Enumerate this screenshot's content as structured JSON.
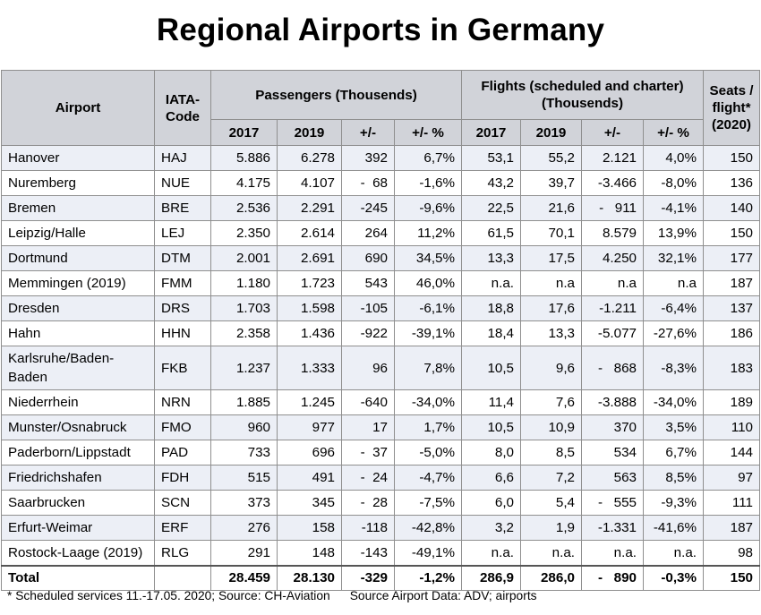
{
  "title": "Regional Airports in Germany",
  "headers": {
    "airport": "Airport",
    "iata": "IATA-Code",
    "passengers": "Passengers (Thousends)",
    "flights": "Flights (scheduled and charter) (Thousends)",
    "seats": "Seats / flight* (2020)",
    "sub": [
      "2017",
      "2019",
      "+/-",
      "+/- %",
      "2017",
      "2019",
      "+/-",
      "+/- %"
    ]
  },
  "rows": [
    {
      "airport": "Hanover",
      "iata": "HAJ",
      "p2017": "5.886",
      "p2019": "6.278",
      "pdiff": "392",
      "ppct": "6,7%",
      "f2017": "53,1",
      "f2019": "55,2",
      "fdiff": "2.121",
      "fpct": "4,0%",
      "seats": "150"
    },
    {
      "airport": "Nuremberg",
      "iata": "NUE",
      "p2017": "4.175",
      "p2019": "4.107",
      "pdiff": "-  68",
      "ppct": "-1,6%",
      "f2017": "43,2",
      "f2019": "39,7",
      "fdiff": "-3.466",
      "fpct": "-8,0%",
      "seats": "136"
    },
    {
      "airport": "Bremen",
      "iata": "BRE",
      "p2017": "2.536",
      "p2019": "2.291",
      "pdiff": "-245",
      "ppct": "-9,6%",
      "f2017": "22,5",
      "f2019": "21,6",
      "fdiff": "-   911",
      "fpct": "-4,1%",
      "seats": "140"
    },
    {
      "airport": "Leipzig/Halle",
      "iata": "LEJ",
      "p2017": "2.350",
      "p2019": "2.614",
      "pdiff": "264",
      "ppct": "11,2%",
      "f2017": "61,5",
      "f2019": "70,1",
      "fdiff": "8.579",
      "fpct": "13,9%",
      "seats": "150"
    },
    {
      "airport": "Dortmund",
      "iata": "DTM",
      "p2017": "2.001",
      "p2019": "2.691",
      "pdiff": "690",
      "ppct": "34,5%",
      "f2017": "13,3",
      "f2019": "17,5",
      "fdiff": "4.250",
      "fpct": "32,1%",
      "seats": "177"
    },
    {
      "airport": "Memmingen (2019)",
      "iata": "FMM",
      "p2017": "1.180",
      "p2019": "1.723",
      "pdiff": "543",
      "ppct": "46,0%",
      "f2017": "n.a.",
      "f2019": "n.a",
      "fdiff": "n.a",
      "fpct": "n.a",
      "seats": "187"
    },
    {
      "airport": "Dresden",
      "iata": "DRS",
      "p2017": "1.703",
      "p2019": "1.598",
      "pdiff": "-105",
      "ppct": "-6,1%",
      "f2017": "18,8",
      "f2019": "17,6",
      "fdiff": "-1.211",
      "fpct": "-6,4%",
      "seats": "137"
    },
    {
      "airport": "Hahn",
      "iata": "HHN",
      "p2017": "2.358",
      "p2019": "1.436",
      "pdiff": "-922",
      "ppct": "-39,1%",
      "f2017": "18,4",
      "f2019": "13,3",
      "fdiff": "-5.077",
      "fpct": "-27,6%",
      "seats": "186"
    },
    {
      "airport": "Karlsruhe/Baden-Baden",
      "iata": "FKB",
      "p2017": "1.237",
      "p2019": "1.333",
      "pdiff": "96",
      "ppct": "7,8%",
      "f2017": "10,5",
      "f2019": "9,6",
      "fdiff": "-   868",
      "fpct": "-8,3%",
      "seats": "183",
      "tall": true
    },
    {
      "airport": "Niederrhein",
      "iata": "NRN",
      "p2017": "1.885",
      "p2019": "1.245",
      "pdiff": "-640",
      "ppct": "-34,0%",
      "f2017": "11,4",
      "f2019": "7,6",
      "fdiff": "-3.888",
      "fpct": "-34,0%",
      "seats": "189"
    },
    {
      "airport": "Munster/Osnabruck",
      "iata": "FMO",
      "p2017": "960",
      "p2019": "977",
      "pdiff": "17",
      "ppct": "1,7%",
      "f2017": "10,5",
      "f2019": "10,9",
      "fdiff": "370",
      "fpct": "3,5%",
      "seats": "110"
    },
    {
      "airport": "Paderborn/Lippstadt",
      "iata": "PAD",
      "p2017": "733",
      "p2019": "696",
      "pdiff": "-  37",
      "ppct": "-5,0%",
      "f2017": "8,0",
      "f2019": "8,5",
      "fdiff": "534",
      "fpct": "6,7%",
      "seats": "144"
    },
    {
      "airport": "Friedrichshafen",
      "iata": "FDH",
      "p2017": "515",
      "p2019": "491",
      "pdiff": "-  24",
      "ppct": "-4,7%",
      "f2017": "6,6",
      "f2019": "7,2",
      "fdiff": "563",
      "fpct": "8,5%",
      "seats": "97"
    },
    {
      "airport": "Saarbrucken",
      "iata": "SCN",
      "p2017": "373",
      "p2019": "345",
      "pdiff": "-  28",
      "ppct": "-7,5%",
      "f2017": "6,0",
      "f2019": "5,4",
      "fdiff": "-   555",
      "fpct": "-9,3%",
      "seats": "111"
    },
    {
      "airport": "Erfurt-Weimar",
      "iata": "ERF",
      "p2017": "276",
      "p2019": "158",
      "pdiff": "-118",
      "ppct": "-42,8%",
      "f2017": "3,2",
      "f2019": "1,9",
      "fdiff": "-1.331",
      "fpct": "-41,6%",
      "seats": "187"
    },
    {
      "airport": "Rostock-Laage (2019)",
      "iata": "RLG",
      "p2017": "291",
      "p2019": "148",
      "pdiff": "-143",
      "ppct": "-49,1%",
      "f2017": "n.a.",
      "f2019": "n.a.",
      "fdiff": "n.a.",
      "fpct": "n.a.",
      "seats": "98"
    }
  ],
  "total": {
    "airport": "Total",
    "p2017": "28.459",
    "p2019": "28.130",
    "pdiff": "-329",
    "ppct": "-1,2%",
    "f2017": "286,9",
    "f2019": "286,0",
    "fdiff": "-   890",
    "fpct": "-0,3%",
    "seats": "150"
  },
  "footnote": {
    "left": "* Scheduled services 11.-17.05. 2020; Source: CH-Aviation",
    "right": "Source Airport Data: ADV; airports"
  }
}
